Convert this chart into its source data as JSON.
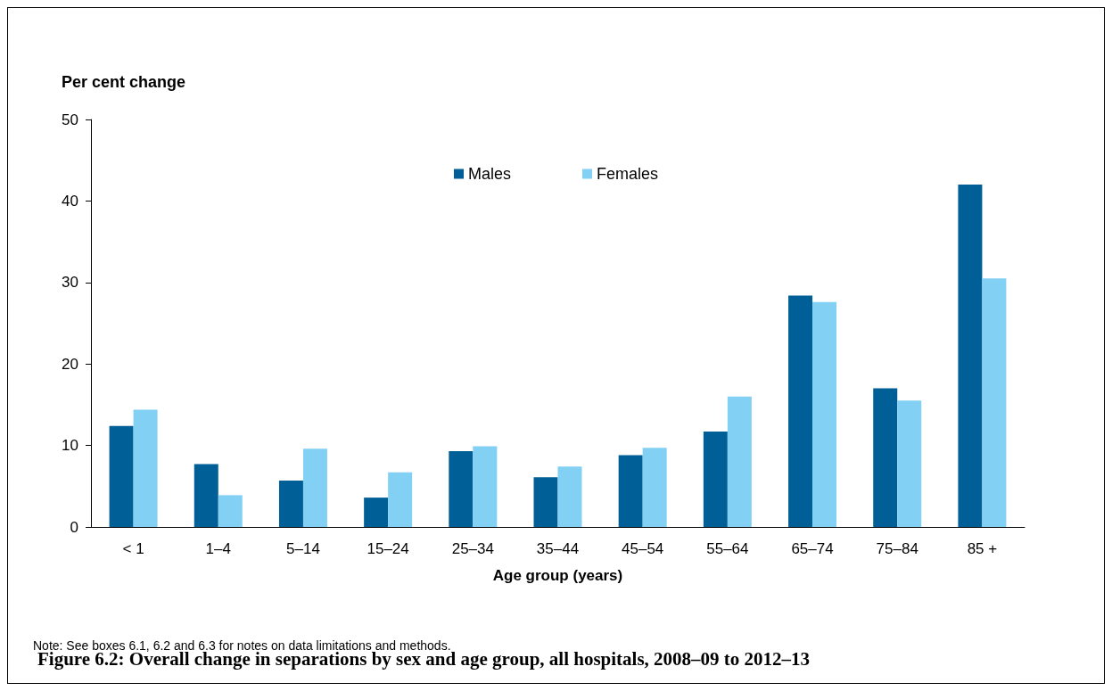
{
  "chart_data": {
    "type": "bar",
    "title": "Figure 6.2: Overall change in separations by sex and age group, all hospitals, 2008–09 to 2012–13",
    "ylabel": "Per cent change",
    "xlabel": "Age group (years)",
    "annotations": [
      "Note: See boxes 6.1, 6.2 and 6.3 for notes on data limitations and methods."
    ],
    "categories": [
      "< 1",
      "1–4",
      "5–14",
      "15–24",
      "25–34",
      "35–44",
      "45–54",
      "55–64",
      "65–74",
      "75–84",
      "85 +"
    ],
    "series": [
      {
        "name": "Males",
        "color": "#005f96",
        "values": [
          12.4,
          7.7,
          5.7,
          3.6,
          9.3,
          6.1,
          8.8,
          11.7,
          28.4,
          17.0,
          42.0
        ]
      },
      {
        "name": "Females",
        "color": "#83d0f5",
        "values": [
          14.4,
          3.9,
          9.6,
          6.7,
          9.9,
          7.4,
          9.7,
          16.0,
          27.6,
          15.5,
          30.5
        ]
      }
    ],
    "ylim": [
      0,
      50
    ],
    "yticks": [
      0,
      10,
      20,
      30,
      40,
      50
    ],
    "grid": false,
    "legend": "top"
  }
}
